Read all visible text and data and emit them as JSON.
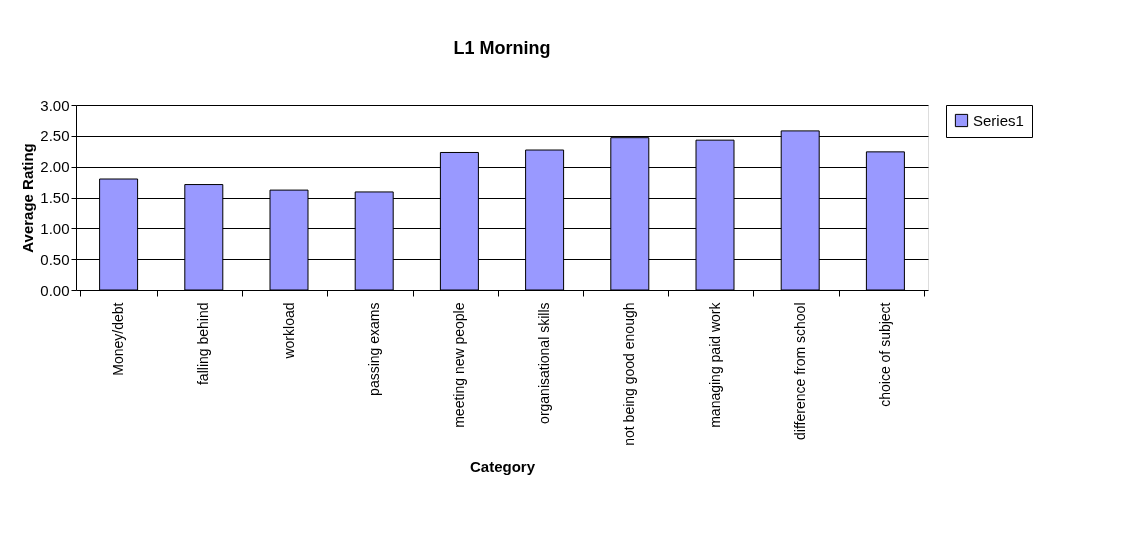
{
  "chart_data": {
    "type": "bar",
    "title": "L1 Morning",
    "xlabel": "Category",
    "ylabel": "Average Rating",
    "categories": [
      "Money/debt",
      "falling behind",
      "workload",
      "passing exams",
      "meeting new people",
      "organisational skills",
      "not being good enough",
      "managing paid work",
      "difference from school",
      "choice of subject"
    ],
    "series": [
      {
        "name": "Series1",
        "color": "#9999ff",
        "values": [
          1.8,
          1.71,
          1.62,
          1.59,
          2.23,
          2.27,
          2.47,
          2.43,
          2.58,
          2.24
        ]
      }
    ],
    "ylim": [
      0,
      3
    ],
    "yticks": [
      {
        "value": 0,
        "label": "0.00"
      },
      {
        "value": 0.5,
        "label": "0.50"
      },
      {
        "value": 1,
        "label": "1.00"
      },
      {
        "value": 1.5,
        "label": "1.50"
      },
      {
        "value": 2,
        "label": "2.00"
      },
      {
        "value": 2.5,
        "label": "2.50"
      },
      {
        "value": 3,
        "label": "3.00"
      }
    ],
    "grid": "y",
    "legend": "right"
  }
}
